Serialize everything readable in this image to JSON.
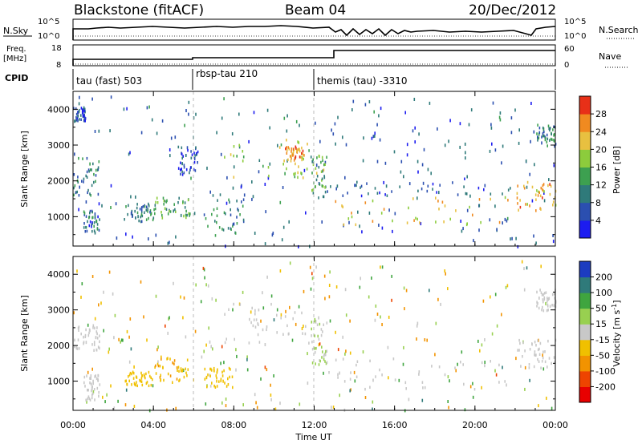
{
  "header": {
    "station": "Blackstone (fitACF)",
    "beam": "Beam 04",
    "date": "20/Dec/2012"
  },
  "top_panels": {
    "nsky": {
      "label": "N.Sky",
      "ticks": [
        "10^5",
        "10^0"
      ]
    },
    "nsearch": {
      "label": "N.Search",
      "ticks": [
        "10^5",
        "10^0"
      ]
    },
    "freq": {
      "label_line1": "Freq.",
      "label_line2": "[MHz]",
      "ticks": [
        "18",
        "8"
      ]
    },
    "nave": {
      "label": "Nave",
      "ticks": [
        "60",
        "0"
      ]
    },
    "cpid": {
      "label": "CPID"
    },
    "programs": [
      {
        "name": "tau (fast) 503",
        "start_hour": 0.0
      },
      {
        "name": "rbsp-tau 210",
        "start_hour": 6.0
      },
      {
        "name": "themis (tau) -3310",
        "start_hour": 12.0
      }
    ]
  },
  "chart_data": [
    {
      "type": "heatmap",
      "title": "",
      "xlabel": "Time UT",
      "ylabel": "Slant Range [km]",
      "x_range_hours": [
        0,
        24
      ],
      "x_ticks": [
        "00:00",
        "04:00",
        "08:00",
        "12:00",
        "16:00",
        "20:00",
        "00:00"
      ],
      "ylim": [
        180,
        4500
      ],
      "y_ticks": [
        "1000",
        "2000",
        "3000",
        "4000"
      ],
      "colorbar": {
        "label": "Power [dB]",
        "ticks": [
          "4",
          "8",
          "12",
          "16",
          "20",
          "24",
          "28"
        ],
        "range": [
          0,
          30
        ],
        "colors": [
          "#1c1cf0",
          "#2b4fb0",
          "#2f7a7a",
          "#3da050",
          "#8ccc3c",
          "#e8c040",
          "#f08a20",
          "#e83018"
        ]
      },
      "regions": [
        {
          "t0": 0.0,
          "t1": 1.3,
          "r0": 1600,
          "r1": 2700,
          "level": 10
        },
        {
          "t0": 0.1,
          "t1": 0.6,
          "r0": 3700,
          "r1": 4100,
          "level": 6
        },
        {
          "t0": 0.5,
          "t1": 1.3,
          "r0": 600,
          "r1": 1200,
          "level": 8
        },
        {
          "t0": 2.5,
          "t1": 4.0,
          "r0": 900,
          "r1": 1400,
          "level": 10
        },
        {
          "t0": 4.0,
          "t1": 5.8,
          "r0": 1000,
          "r1": 1600,
          "level": 13
        },
        {
          "t0": 5.2,
          "t1": 6.2,
          "r0": 2200,
          "r1": 3000,
          "level": 6
        },
        {
          "t0": 6.5,
          "t1": 8.5,
          "r0": 500,
          "r1": 1700,
          "level": 10
        },
        {
          "t0": 7.5,
          "t1": 11.8,
          "r0": 2100,
          "r1": 3200,
          "level": 16
        },
        {
          "t0": 10.5,
          "t1": 11.5,
          "r0": 2600,
          "r1": 3000,
          "level": 24
        },
        {
          "t0": 11.8,
          "t1": 12.6,
          "r0": 1500,
          "r1": 2800,
          "level": 14
        },
        {
          "t0": 12.6,
          "t1": 22.0,
          "r0": 800,
          "r1": 1600,
          "level": 20
        },
        {
          "t0": 12.6,
          "t1": 22.0,
          "r0": 1600,
          "r1": 2100,
          "level": 6
        },
        {
          "t0": 22.0,
          "t1": 24.0,
          "r0": 1200,
          "r1": 2000,
          "level": 22
        },
        {
          "t0": 23.0,
          "t1": 24.0,
          "r0": 3000,
          "r1": 3600,
          "level": 10
        }
      ]
    },
    {
      "type": "heatmap",
      "title": "",
      "xlabel": "Time UT",
      "ylabel": "Slant Range [km]",
      "x_range_hours": [
        0,
        24
      ],
      "x_ticks": [
        "00:00",
        "04:00",
        "08:00",
        "12:00",
        "16:00",
        "20:00",
        "00:00"
      ],
      "ylim": [
        180,
        4500
      ],
      "y_ticks": [
        "1000",
        "2000",
        "3000",
        "4000"
      ],
      "colorbar": {
        "label": "Velocity [m s^-1]",
        "ticks": [
          "200",
          "100",
          "50",
          "15",
          "-15",
          "-50",
          "-100",
          "-200"
        ],
        "range": [
          -250,
          250
        ],
        "colors": [
          "#e80000",
          "#ee4400",
          "#f29300",
          "#f0c000",
          "#c8c8c8",
          "#98d050",
          "#3fa53f",
          "#2f7a7a",
          "#1c3cc0"
        ]
      },
      "regions": [
        {
          "t0": 0.0,
          "t1": 1.3,
          "r0": 1900,
          "r1": 2600,
          "level": 0
        },
        {
          "t0": 0.5,
          "t1": 1.3,
          "r0": 500,
          "r1": 1200,
          "level": 0
        },
        {
          "t0": 2.5,
          "t1": 4.0,
          "r0": 900,
          "r1": 1300,
          "level": -60
        },
        {
          "t0": 4.0,
          "t1": 5.8,
          "r0": 1000,
          "r1": 1700,
          "level": -70
        },
        {
          "t0": 6.5,
          "t1": 8.0,
          "r0": 800,
          "r1": 1400,
          "level": -50
        },
        {
          "t0": 7.5,
          "t1": 11.8,
          "r0": 2100,
          "r1": 3200,
          "level": 0
        },
        {
          "t0": 11.8,
          "t1": 12.6,
          "r0": 1500,
          "r1": 2800,
          "level": 25
        },
        {
          "t0": 12.6,
          "t1": 22.0,
          "r0": 800,
          "r1": 1700,
          "level": 0
        },
        {
          "t0": 22.0,
          "t1": 24.0,
          "r0": 1400,
          "r1": 2200,
          "level": 0
        },
        {
          "t0": 23.0,
          "t1": 24.0,
          "r0": 3000,
          "r1": 3600,
          "level": 0
        }
      ]
    }
  ]
}
